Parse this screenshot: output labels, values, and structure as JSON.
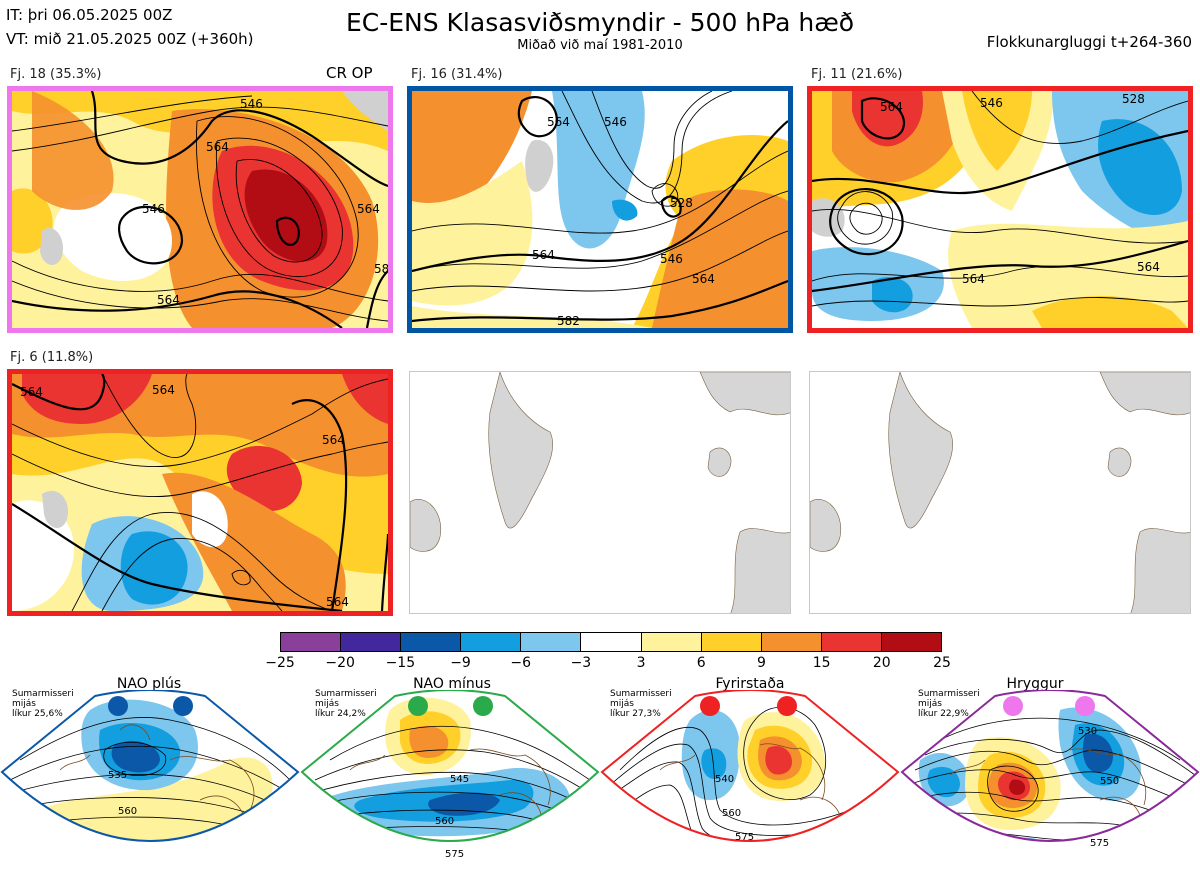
{
  "header": {
    "init_time": "IT: þri 06.05.2025 00Z",
    "valid_time": "VT: mið 21.05.2025 00Z  (+360h)",
    "title": "EC-ENS Klasasviðsmyndir - 500 hPa hæð",
    "subtitle": "Miðað við maí 1981-2010",
    "window": "Flokkunargluggi t+264-360"
  },
  "panels": [
    {
      "label": "Fj. 18 (35.3%)",
      "tag": "CR OP",
      "border_color": "#ee77ee",
      "contours": [
        "546",
        "564",
        "546",
        "564",
        "564",
        "58"
      ]
    },
    {
      "label": "Fj. 16 (31.4%)",
      "tag": "",
      "border_color": "#0055a4",
      "contours": [
        "546",
        "564",
        "528",
        "546",
        "564",
        "564",
        "582"
      ]
    },
    {
      "label": "Fj. 11 (21.6%)",
      "tag": "",
      "border_color": "#ee2222",
      "contours": [
        "564",
        "546",
        "528",
        "564",
        "564"
      ]
    },
    {
      "label": "Fj. 6 (11.8%)",
      "tag": "",
      "border_color": "#ee2222",
      "contours": [
        "564",
        "564",
        "564",
        "564"
      ]
    }
  ],
  "colorbar": {
    "ticks": [
      "−25",
      "−20",
      "−15",
      "−9",
      "−6",
      "−3",
      "3",
      "6",
      "9",
      "15",
      "20",
      "25"
    ],
    "colors": [
      "#8a3f9a",
      "#42289c",
      "#0b58a8",
      "#139edf",
      "#7dc6ee",
      "#ffffff",
      "#fff29c",
      "#ffd02a",
      "#f5902e",
      "#ea3431",
      "#b20d14"
    ]
  },
  "regimes": [
    {
      "name": "NAO plús",
      "season": "Sumarmisseri",
      "median": "mijás",
      "prob": "líkur 25,6%",
      "dot_color": "#0b58a8",
      "border_color": "#0b58a8",
      "contours": [
        "535",
        "560"
      ]
    },
    {
      "name": "NAO mínus",
      "season": "Sumarmisseri",
      "median": "mijás",
      "prob": "líkur 24,2%",
      "dot_color": "#2aaa4a",
      "border_color": "#2aaa4a",
      "contours": [
        "545",
        "560",
        "575"
      ]
    },
    {
      "name": "Fyrirstaða",
      "season": "Sumarmisseri",
      "median": "mijás",
      "prob": "líkur 27,3%",
      "dot_color": "#ee2222",
      "border_color": "#ee2222",
      "contours": [
        "540",
        "560",
        "575"
      ]
    },
    {
      "name": "Hryggur",
      "season": "Sumarmisseri",
      "median": "mijás",
      "prob": "líkur 22,9%",
      "dot_color": "#ee77ee",
      "border_color": "#8a2a9a",
      "contours": [
        "530",
        "550",
        "575"
      ]
    }
  ]
}
